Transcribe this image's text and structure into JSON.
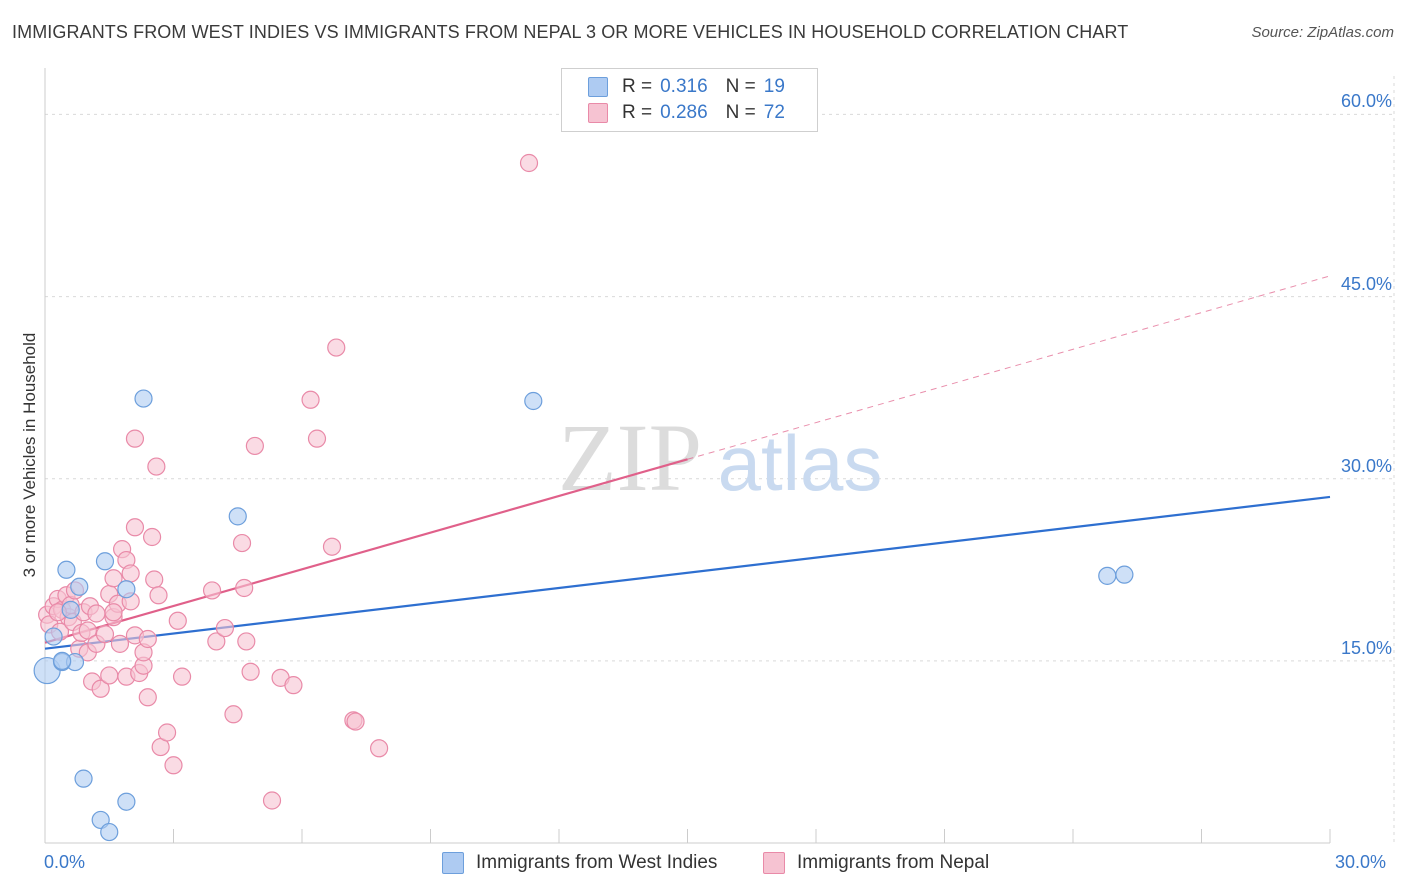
{
  "title": "IMMIGRANTS FROM WEST INDIES VS IMMIGRANTS FROM NEPAL 3 OR MORE VEHICLES IN HOUSEHOLD CORRELATION CHART",
  "source": "Source: ZipAtlas.com",
  "watermark": {
    "zip": "ZIP",
    "atlas": "atlas"
  },
  "legend": {
    "rows": [
      {
        "r_label": "R =",
        "r_value": "0.316",
        "n_label": "N =",
        "n_value": "19"
      },
      {
        "r_label": "R =",
        "r_value": "0.286",
        "n_label": "N =",
        "n_value": "72"
      }
    ]
  },
  "colors": {
    "blue_fill": "#aecbf2",
    "blue_stroke": "#6d9fdc",
    "blue_line": "#2e6fd0",
    "pink_fill": "#f6c3d2",
    "pink_stroke": "#e98aa8",
    "pink_line": "#e0608a",
    "tick_text": "#3a78c9"
  },
  "chart_data": {
    "type": "scatter",
    "title": "IMMIGRANTS FROM WEST INDIES VS IMMIGRANTS FROM NEPAL 3 OR MORE VEHICLES IN HOUSEHOLD CORRELATION CHART",
    "xlabel": "",
    "ylabel": "3 or more Vehicles in Household",
    "xlim": [
      0,
      30
    ],
    "ylim": [
      0,
      63
    ],
    "x_tick_labels": [
      "0.0%",
      "30.0%"
    ],
    "y_ticks": [
      15,
      30,
      45,
      60
    ],
    "y_tick_labels": [
      "15.0%",
      "30.0%",
      "45.0%",
      "60.0%"
    ],
    "grid": true,
    "legend_position": "top-center",
    "series": [
      {
        "name": "Immigrants from West Indies",
        "R": 0.316,
        "N": 19,
        "points": [
          [
            0.05,
            14.2
          ],
          [
            0.2,
            17.0
          ],
          [
            0.4,
            14.9
          ],
          [
            0.6,
            19.2
          ],
          [
            0.7,
            14.9
          ],
          [
            0.5,
            22.5
          ],
          [
            0.8,
            21.1
          ],
          [
            1.4,
            23.2
          ],
          [
            1.9,
            20.9
          ],
          [
            2.3,
            36.6
          ],
          [
            4.5,
            26.9
          ],
          [
            11.4,
            36.4
          ],
          [
            24.8,
            22.0
          ],
          [
            25.2,
            22.1
          ],
          [
            0.9,
            5.3
          ],
          [
            1.9,
            3.4
          ],
          [
            1.3,
            1.9
          ],
          [
            1.5,
            0.9
          ],
          [
            0.4,
            15.0
          ]
        ],
        "trend": {
          "x0": 0,
          "y0": 16.0,
          "x1": 30,
          "y1": 28.5,
          "solid_to": 30
        }
      },
      {
        "name": "Immigrants from Nepal",
        "R": 0.286,
        "N": 72,
        "points": [
          [
            0.05,
            18.8
          ],
          [
            0.1,
            18.0
          ],
          [
            0.2,
            19.5
          ],
          [
            0.3,
            20.1
          ],
          [
            0.35,
            17.4
          ],
          [
            0.4,
            19.2
          ],
          [
            0.5,
            20.4
          ],
          [
            0.55,
            18.6
          ],
          [
            0.6,
            19.6
          ],
          [
            0.65,
            18.2
          ],
          [
            0.7,
            20.8
          ],
          [
            0.8,
            16.0
          ],
          [
            0.85,
            17.3
          ],
          [
            0.9,
            19.0
          ],
          [
            1.0,
            15.7
          ],
          [
            1.0,
            17.5
          ],
          [
            1.05,
            19.5
          ],
          [
            1.1,
            13.3
          ],
          [
            1.2,
            16.4
          ],
          [
            1.2,
            18.9
          ],
          [
            1.3,
            12.7
          ],
          [
            1.4,
            17.2
          ],
          [
            1.5,
            20.5
          ],
          [
            1.5,
            13.8
          ],
          [
            1.6,
            21.8
          ],
          [
            1.6,
            18.6
          ],
          [
            1.7,
            19.7
          ],
          [
            1.75,
            16.4
          ],
          [
            1.8,
            24.2
          ],
          [
            1.9,
            13.7
          ],
          [
            1.9,
            23.3
          ],
          [
            2.0,
            22.2
          ],
          [
            2.0,
            19.9
          ],
          [
            2.1,
            17.1
          ],
          [
            2.1,
            26.0
          ],
          [
            2.1,
            33.3
          ],
          [
            2.2,
            14.0
          ],
          [
            2.3,
            14.6
          ],
          [
            2.3,
            15.7
          ],
          [
            2.4,
            16.8
          ],
          [
            2.4,
            12.0
          ],
          [
            2.5,
            25.2
          ],
          [
            2.55,
            21.7
          ],
          [
            2.6,
            31.0
          ],
          [
            2.65,
            20.4
          ],
          [
            2.7,
            7.9
          ],
          [
            2.85,
            9.1
          ],
          [
            3.0,
            6.4
          ],
          [
            3.1,
            18.3
          ],
          [
            3.2,
            13.7
          ],
          [
            3.9,
            20.8
          ],
          [
            4.0,
            16.6
          ],
          [
            4.2,
            17.7
          ],
          [
            4.4,
            10.6
          ],
          [
            4.6,
            24.7
          ],
          [
            4.65,
            21.0
          ],
          [
            4.7,
            16.6
          ],
          [
            4.8,
            14.1
          ],
          [
            4.9,
            32.7
          ],
          [
            5.3,
            3.5
          ],
          [
            5.5,
            13.6
          ],
          [
            5.8,
            13.0
          ],
          [
            6.2,
            36.5
          ],
          [
            6.35,
            33.3
          ],
          [
            6.7,
            24.4
          ],
          [
            6.8,
            40.8
          ],
          [
            7.2,
            10.1
          ],
          [
            7.25,
            10.0
          ],
          [
            7.8,
            7.8
          ],
          [
            11.3,
            56.0
          ],
          [
            0.3,
            19.0
          ],
          [
            1.6,
            19.0
          ]
        ],
        "trend": {
          "x0": 0,
          "y0": 16.5,
          "x1": 30,
          "y1": 46.7,
          "solid_to": 15
        }
      }
    ]
  }
}
